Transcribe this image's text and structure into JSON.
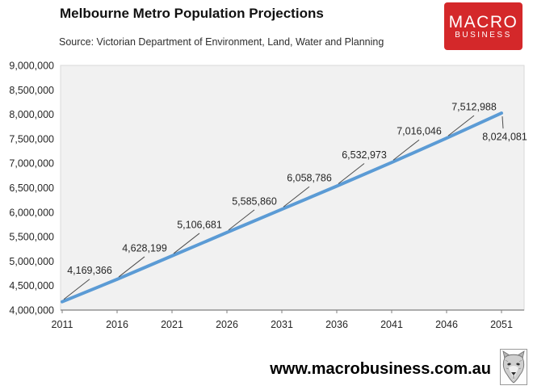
{
  "header": {
    "title": "Melbourne Metro Population Projections",
    "source": "Source: Victorian Department of Environment, Land, Water and Planning",
    "logo": {
      "line1": "MACRO",
      "line2": "BUSINESS",
      "bg_color": "#d4282a",
      "text_color": "#ffffff"
    }
  },
  "chart_data": {
    "type": "line",
    "title": "Melbourne Metro Population Projections",
    "x": [
      2011,
      2016,
      2021,
      2026,
      2031,
      2036,
      2041,
      2046,
      2051
    ],
    "x_tick_labels": [
      "2011",
      "2016",
      "2021",
      "2026",
      "2031",
      "2036",
      "2041",
      "2046",
      "2051"
    ],
    "series": [
      {
        "name": "Melbourne metro population projection",
        "values": [
          4169366,
          4628199,
          5106681,
          5585860,
          6058786,
          6532973,
          7016046,
          7512988,
          8024081
        ],
        "color": "#5b9bd5"
      }
    ],
    "data_labels": [
      "4,169,366",
      "4,628,199",
      "5,106,681",
      "5,585,860",
      "6,058,786",
      "6,532,973",
      "7,016,046",
      "7,512,988",
      "8,024,081"
    ],
    "y_tick_labels": [
      "9,000,000",
      "8,500,000",
      "8,000,000",
      "7,500,000",
      "7,000,000",
      "6,500,000",
      "6,000,000",
      "5,500,000",
      "5,000,000",
      "4,500,000",
      "4,000,000"
    ],
    "ylim": [
      4000000,
      9000000
    ],
    "y_major_unit": 500000,
    "xlabel": "",
    "ylabel": "",
    "grid": false,
    "legend": "none",
    "plot_bg": "#f1f1f1",
    "plot_border_color": "#d9d9d9",
    "axis_line_color": "#7f7f7f",
    "label_color": "#262626",
    "leader_line_color": "#4d4d4d"
  },
  "footer": {
    "website": "www.macrobusiness.com.au",
    "wolf_icon": "wolf-head-icon"
  }
}
